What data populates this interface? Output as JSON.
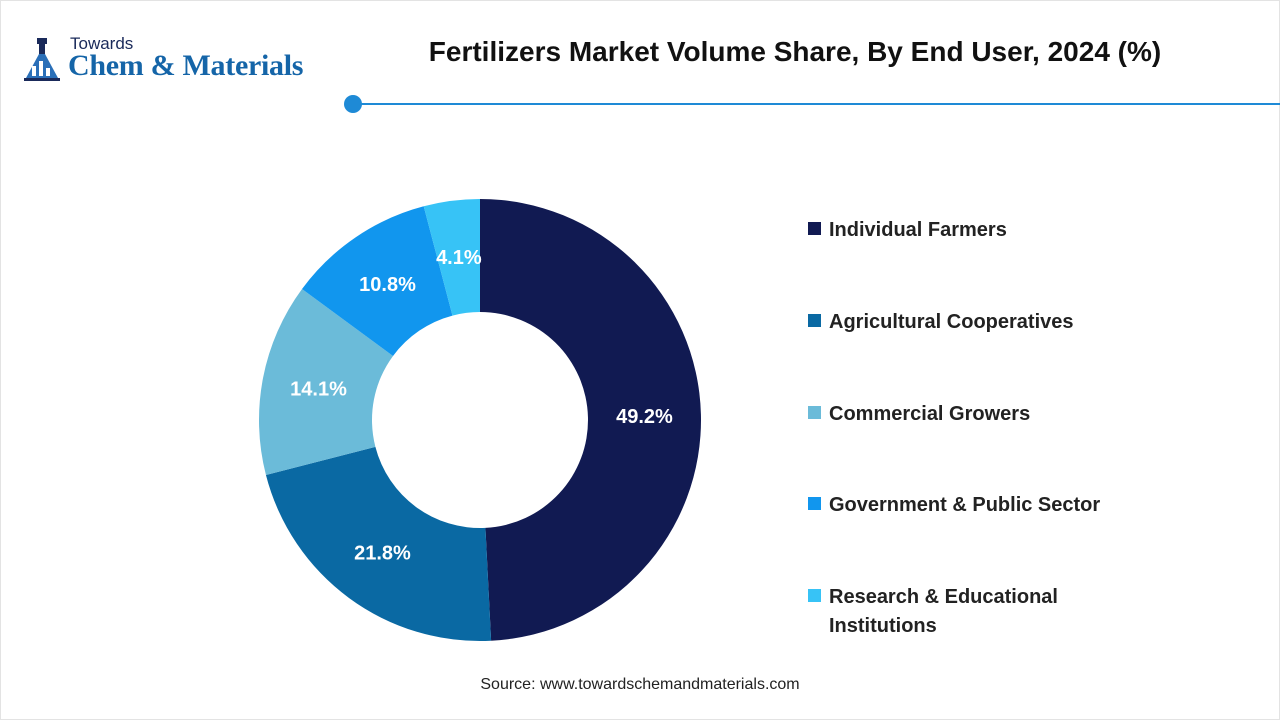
{
  "logo": {
    "small_text": "Towards",
    "big_text": "Chem & Materials",
    "icon": "flask-chart-icon"
  },
  "colors": {
    "accent": "#1e8ad6",
    "title": "#111111"
  },
  "source": "Source: www.towardschemandmaterials.com",
  "chart_data": {
    "type": "pie",
    "donut": true,
    "title": "Fertilizers Market Volume Share, By End User, 2024 (%)",
    "categories": [
      "Individual Farmers",
      "Agricultural Cooperatives",
      "Commercial Growers",
      "Government & Public Sector",
      "Research & Educational Institutions"
    ],
    "values": [
      49.2,
      21.8,
      14.1,
      10.8,
      4.1
    ],
    "data_labels": [
      "49.2%",
      "21.8%",
      "14.1%",
      "10.8%",
      "4.1%"
    ],
    "colors": [
      "#111a52",
      "#0a69a3",
      "#6bbbd9",
      "#1196ee",
      "#37c3f6"
    ],
    "legend_position": "right"
  }
}
